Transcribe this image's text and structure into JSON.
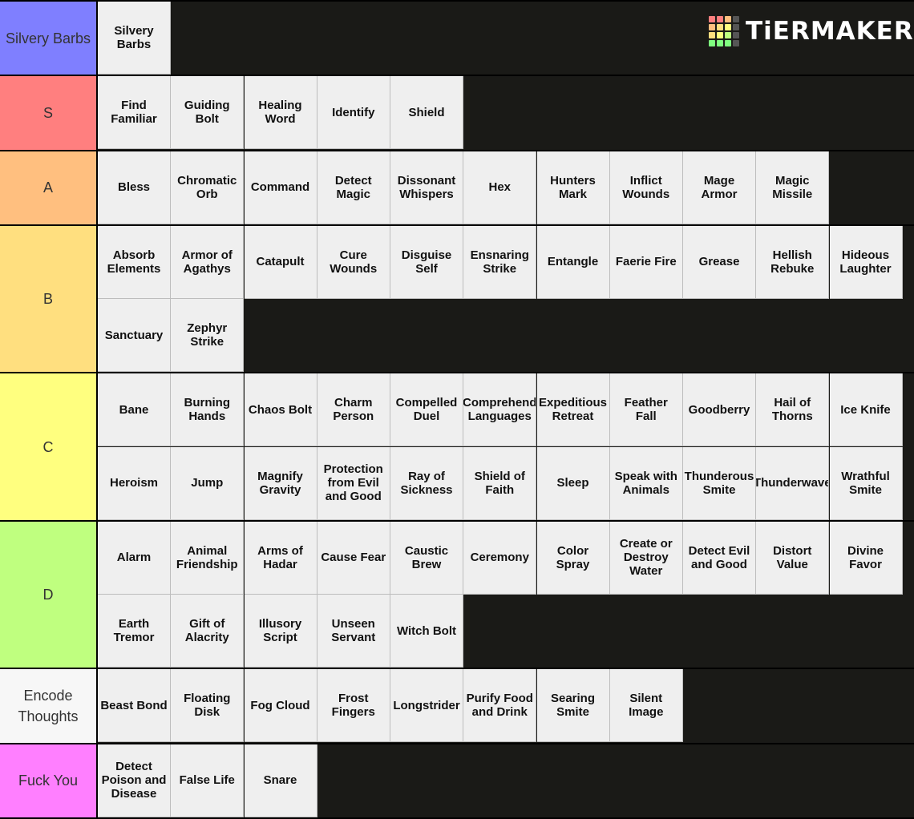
{
  "logo": {
    "text": "TiERMAKER",
    "grid_colors": [
      "#ff7f7f",
      "#ff7f7f",
      "#ffbf7f",
      "#555555",
      "#ffbf7f",
      "#ffdf7f",
      "#ffff7f",
      "#555555",
      "#ffdf7f",
      "#ffff7f",
      "#bfff7f",
      "#555555",
      "#7fff7f",
      "#7fff7f",
      "#7fff7f",
      "#555555"
    ]
  },
  "tiers": [
    {
      "label": "Silvery Barbs",
      "color": "#7f7fff",
      "items": [
        "Silvery\nBarbs"
      ]
    },
    {
      "label": "S",
      "color": "#ff7f7f",
      "items": [
        "Find\nFamiliar",
        "Guiding\nBolt",
        "Healing\nWord",
        "Identify",
        "Shield"
      ]
    },
    {
      "label": "A",
      "color": "#ffbf7f",
      "items": [
        "Bless",
        "Chromatic\nOrb",
        "Command",
        "Detect\nMagic",
        "Dissonant\nWhispers",
        "Hex",
        "Hunters\nMark",
        "Inflict\nWounds",
        "Mage\nArmor",
        "Magic\nMissile"
      ]
    },
    {
      "label": "B",
      "color": "#ffdf7f",
      "items": [
        "Absorb\nElements",
        "Armor of\nAgathys",
        "Catapult",
        "Cure\nWounds",
        "Disguise\nSelf",
        "Ensnaring\nStrike",
        "Entangle",
        "Faerie Fire",
        "Grease",
        "Hellish\nRebuke",
        "Hideous\nLaughter",
        "Sanctuary",
        "Zephyr\nStrike"
      ]
    },
    {
      "label": "C",
      "color": "#ffff7f",
      "items": [
        "Bane",
        "Burning\nHands",
        "Chaos Bolt",
        "Charm\nPerson",
        "Compelled\nDuel",
        "Comprehend\nLanguages",
        "Expeditious\nRetreat",
        "Feather\nFall",
        "Goodberry",
        "Hail of\nThorns",
        "Ice Knife",
        "Heroism",
        "Jump",
        "Magnify\nGravity",
        "Protection\nfrom Evil\nand Good",
        "Ray of\nSickness",
        "Shield of\nFaith",
        "Sleep",
        "Speak with\nAnimals",
        "Thunderous\nSmite",
        "Thunderwave",
        "Wrathful\nSmite"
      ]
    },
    {
      "label": "D",
      "color": "#bfff7f",
      "items": [
        "Alarm",
        "Animal\nFriendship",
        "Arms of\nHadar",
        "Cause Fear",
        "Caustic\nBrew",
        "Ceremony",
        "Color\nSpray",
        "Create or\nDestroy\nWater",
        "Detect Evil\nand Good",
        "Distort\nValue",
        "Divine\nFavor",
        "Earth\nTremor",
        "Gift of\nAlacrity",
        "Illusory\nScript",
        "Unseen\nServant",
        "Witch Bolt"
      ]
    },
    {
      "label": "Encode Thoughts",
      "color": "#f7f7f7",
      "items": [
        "Beast Bond",
        "Floating\nDisk",
        "Fog Cloud",
        "Frost\nFingers",
        "Longstrider",
        "Purify Food\nand Drink",
        "Searing\nSmite",
        "Silent\nImage"
      ]
    },
    {
      "label": "Fuck You",
      "color": "#ff7fff",
      "items": [
        "Detect\nPoison and\nDisease",
        "False Life",
        "Snare"
      ]
    }
  ]
}
